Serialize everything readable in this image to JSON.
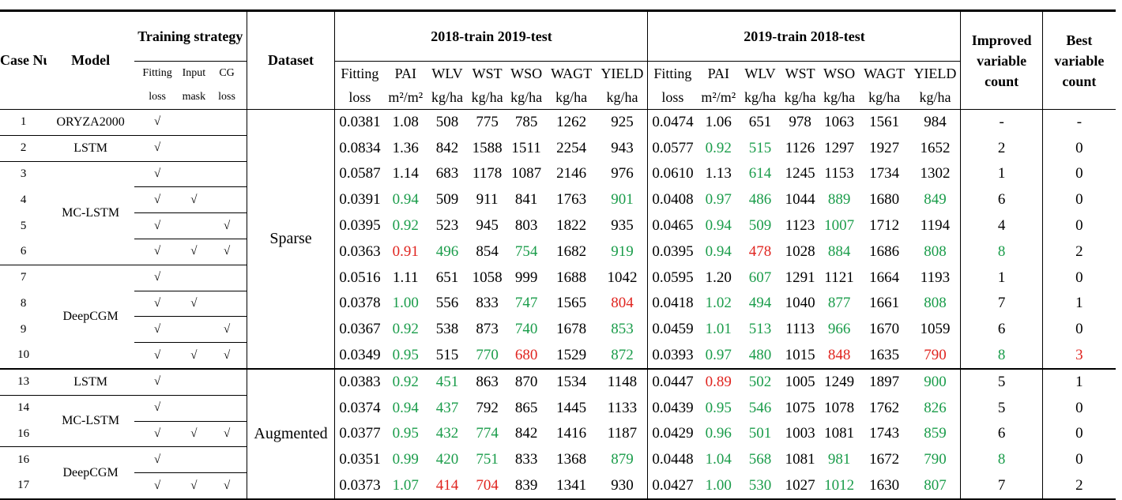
{
  "headers": {
    "case_num": "Case Num",
    "model": "Model",
    "training_strategy": "Training strategy",
    "fitting_loss_1": "Fitting",
    "fitting_loss_2": "loss",
    "input_mask_1": "Input",
    "input_mask_2": "mask",
    "cg_loss_1": "CG",
    "cg_loss_2": "loss",
    "dataset": "Dataset",
    "group1": "2018-train 2019-test",
    "group2": "2019-train 2018-test",
    "improved": "Improved variable count",
    "best": "Best variable count",
    "cols": [
      "Fitting",
      "PAI",
      "WLV",
      "WST",
      "WSO",
      "WAGT",
      "YIELD"
    ],
    "units": [
      "loss",
      "m²/m²",
      "kg/ha",
      "kg/ha",
      "kg/ha",
      "kg/ha",
      "kg/ha"
    ]
  },
  "rows": [
    {
      "num": "1",
      "model": "ORYZA2000",
      "f": "√",
      "m": "",
      "c": "",
      "a": [
        [
          "0.0381",
          ""
        ],
        [
          "1.08",
          ""
        ],
        [
          "508",
          ""
        ],
        [
          "775",
          ""
        ],
        [
          "785",
          ""
        ],
        [
          "1262",
          ""
        ],
        [
          "925",
          ""
        ]
      ],
      "b": [
        [
          "0.0474",
          ""
        ],
        [
          "1.06",
          ""
        ],
        [
          "651",
          ""
        ],
        [
          "978",
          ""
        ],
        [
          "1063",
          ""
        ],
        [
          "1561",
          ""
        ],
        [
          "984",
          ""
        ]
      ],
      "imp": [
        "-",
        ""
      ],
      "best": [
        "-",
        ""
      ]
    },
    {
      "num": "2",
      "model": "LSTM",
      "f": "√",
      "m": "",
      "c": "",
      "a": [
        [
          "0.0834",
          ""
        ],
        [
          "1.36",
          ""
        ],
        [
          "842",
          ""
        ],
        [
          "1588",
          ""
        ],
        [
          "1511",
          ""
        ],
        [
          "2254",
          ""
        ],
        [
          "943",
          ""
        ]
      ],
      "b": [
        [
          "0.0577",
          ""
        ],
        [
          "0.92",
          "g"
        ],
        [
          "515",
          "g"
        ],
        [
          "1126",
          ""
        ],
        [
          "1297",
          ""
        ],
        [
          "1927",
          ""
        ],
        [
          "1652",
          ""
        ]
      ],
      "imp": [
        "2",
        ""
      ],
      "best": [
        "0",
        ""
      ]
    },
    {
      "num": "3",
      "model": "",
      "f": "√",
      "m": "",
      "c": "",
      "a": [
        [
          "0.0587",
          ""
        ],
        [
          "1.14",
          ""
        ],
        [
          "683",
          ""
        ],
        [
          "1178",
          ""
        ],
        [
          "1087",
          ""
        ],
        [
          "2146",
          ""
        ],
        [
          "976",
          ""
        ]
      ],
      "b": [
        [
          "0.0610",
          ""
        ],
        [
          "1.13",
          ""
        ],
        [
          "614",
          "g"
        ],
        [
          "1245",
          ""
        ],
        [
          "1153",
          ""
        ],
        [
          "1734",
          ""
        ],
        [
          "1302",
          ""
        ]
      ],
      "imp": [
        "1",
        ""
      ],
      "best": [
        "0",
        ""
      ]
    },
    {
      "num": "4",
      "model": "",
      "f": "√",
      "m": "√",
      "c": "",
      "a": [
        [
          "0.0391",
          ""
        ],
        [
          "0.94",
          "g"
        ],
        [
          "509",
          ""
        ],
        [
          "911",
          ""
        ],
        [
          "841",
          ""
        ],
        [
          "1763",
          ""
        ],
        [
          "901",
          "g"
        ]
      ],
      "b": [
        [
          "0.0408",
          ""
        ],
        [
          "0.97",
          "g"
        ],
        [
          "486",
          "g"
        ],
        [
          "1044",
          ""
        ],
        [
          "889",
          "g"
        ],
        [
          "1680",
          ""
        ],
        [
          "849",
          "g"
        ]
      ],
      "imp": [
        "6",
        ""
      ],
      "best": [
        "0",
        ""
      ]
    },
    {
      "num": "5",
      "model": "",
      "f": "√",
      "m": "",
      "c": "√",
      "a": [
        [
          "0.0395",
          ""
        ],
        [
          "0.92",
          "g"
        ],
        [
          "523",
          ""
        ],
        [
          "945",
          ""
        ],
        [
          "803",
          ""
        ],
        [
          "1822",
          ""
        ],
        [
          "935",
          ""
        ]
      ],
      "b": [
        [
          "0.0465",
          ""
        ],
        [
          "0.94",
          "g"
        ],
        [
          "509",
          "g"
        ],
        [
          "1123",
          ""
        ],
        [
          "1007",
          "g"
        ],
        [
          "1712",
          ""
        ],
        [
          "1194",
          ""
        ]
      ],
      "imp": [
        "4",
        ""
      ],
      "best": [
        "0",
        ""
      ]
    },
    {
      "num": "6",
      "model": "",
      "f": "√",
      "m": "√",
      "c": "√",
      "a": [
        [
          "0.0363",
          ""
        ],
        [
          "0.91",
          "r"
        ],
        [
          "496",
          "g"
        ],
        [
          "854",
          ""
        ],
        [
          "754",
          "g"
        ],
        [
          "1682",
          ""
        ],
        [
          "919",
          "g"
        ]
      ],
      "b": [
        [
          "0.0395",
          ""
        ],
        [
          "0.94",
          "g"
        ],
        [
          "478",
          "r"
        ],
        [
          "1028",
          ""
        ],
        [
          "884",
          "g"
        ],
        [
          "1686",
          ""
        ],
        [
          "808",
          "g"
        ]
      ],
      "imp": [
        "8",
        "g"
      ],
      "best": [
        "2",
        ""
      ]
    },
    {
      "num": "7",
      "model": "",
      "f": "√",
      "m": "",
      "c": "",
      "a": [
        [
          "0.0516",
          ""
        ],
        [
          "1.11",
          ""
        ],
        [
          "651",
          ""
        ],
        [
          "1058",
          ""
        ],
        [
          "999",
          ""
        ],
        [
          "1688",
          ""
        ],
        [
          "1042",
          ""
        ]
      ],
      "b": [
        [
          "0.0595",
          ""
        ],
        [
          "1.20",
          ""
        ],
        [
          "607",
          "g"
        ],
        [
          "1291",
          ""
        ],
        [
          "1121",
          ""
        ],
        [
          "1664",
          ""
        ],
        [
          "1193",
          ""
        ]
      ],
      "imp": [
        "1",
        ""
      ],
      "best": [
        "0",
        ""
      ]
    },
    {
      "num": "8",
      "model": "",
      "f": "√",
      "m": "√",
      "c": "",
      "a": [
        [
          "0.0378",
          ""
        ],
        [
          "1.00",
          "g"
        ],
        [
          "556",
          ""
        ],
        [
          "833",
          ""
        ],
        [
          "747",
          "g"
        ],
        [
          "1565",
          ""
        ],
        [
          "804",
          "r"
        ]
      ],
      "b": [
        [
          "0.0418",
          ""
        ],
        [
          "1.02",
          "g"
        ],
        [
          "494",
          "g"
        ],
        [
          "1040",
          ""
        ],
        [
          "877",
          "g"
        ],
        [
          "1661",
          ""
        ],
        [
          "808",
          "g"
        ]
      ],
      "imp": [
        "7",
        ""
      ],
      "best": [
        "1",
        ""
      ]
    },
    {
      "num": "9",
      "model": "",
      "f": "√",
      "m": "",
      "c": "√",
      "a": [
        [
          "0.0367",
          ""
        ],
        [
          "0.92",
          "g"
        ],
        [
          "538",
          ""
        ],
        [
          "873",
          ""
        ],
        [
          "740",
          "g"
        ],
        [
          "1678",
          ""
        ],
        [
          "853",
          "g"
        ]
      ],
      "b": [
        [
          "0.0459",
          ""
        ],
        [
          "1.01",
          "g"
        ],
        [
          "513",
          "g"
        ],
        [
          "1113",
          ""
        ],
        [
          "966",
          "g"
        ],
        [
          "1670",
          ""
        ],
        [
          "1059",
          ""
        ]
      ],
      "imp": [
        "6",
        ""
      ],
      "best": [
        "0",
        ""
      ]
    },
    {
      "num": "10",
      "model": "",
      "f": "√",
      "m": "√",
      "c": "√",
      "a": [
        [
          "0.0349",
          ""
        ],
        [
          "0.95",
          "g"
        ],
        [
          "515",
          ""
        ],
        [
          "770",
          "g"
        ],
        [
          "680",
          "r"
        ],
        [
          "1529",
          ""
        ],
        [
          "872",
          "g"
        ]
      ],
      "b": [
        [
          "0.0393",
          ""
        ],
        [
          "0.97",
          "g"
        ],
        [
          "480",
          "g"
        ],
        [
          "1015",
          ""
        ],
        [
          "848",
          "r"
        ],
        [
          "1635",
          ""
        ],
        [
          "790",
          "r"
        ]
      ],
      "imp": [
        "8",
        "g"
      ],
      "best": [
        "3",
        "r"
      ]
    },
    {
      "num": "13",
      "model": "LSTM",
      "f": "√",
      "m": "",
      "c": "",
      "a": [
        [
          "0.0383",
          ""
        ],
        [
          "0.92",
          "g"
        ],
        [
          "451",
          "g"
        ],
        [
          "863",
          ""
        ],
        [
          "870",
          ""
        ],
        [
          "1534",
          ""
        ],
        [
          "1148",
          ""
        ]
      ],
      "b": [
        [
          "0.0447",
          ""
        ],
        [
          "0.89",
          "r"
        ],
        [
          "502",
          "g"
        ],
        [
          "1005",
          ""
        ],
        [
          "1249",
          ""
        ],
        [
          "1897",
          ""
        ],
        [
          "900",
          "g"
        ]
      ],
      "imp": [
        "5",
        ""
      ],
      "best": [
        "1",
        ""
      ]
    },
    {
      "num": "14",
      "model": "",
      "f": "√",
      "m": "",
      "c": "",
      "a": [
        [
          "0.0374",
          ""
        ],
        [
          "0.94",
          "g"
        ],
        [
          "437",
          "g"
        ],
        [
          "792",
          ""
        ],
        [
          "865",
          ""
        ],
        [
          "1445",
          ""
        ],
        [
          "1133",
          ""
        ]
      ],
      "b": [
        [
          "0.0439",
          ""
        ],
        [
          "0.95",
          "g"
        ],
        [
          "546",
          "g"
        ],
        [
          "1075",
          ""
        ],
        [
          "1078",
          ""
        ],
        [
          "1762",
          ""
        ],
        [
          "826",
          "g"
        ]
      ],
      "imp": [
        "5",
        ""
      ],
      "best": [
        "0",
        ""
      ]
    },
    {
      "num": "16",
      "model": "",
      "f": "√",
      "m": "√",
      "c": "√",
      "a": [
        [
          "0.0377",
          ""
        ],
        [
          "0.95",
          "g"
        ],
        [
          "432",
          "g"
        ],
        [
          "774",
          "g"
        ],
        [
          "842",
          ""
        ],
        [
          "1416",
          ""
        ],
        [
          "1187",
          ""
        ]
      ],
      "b": [
        [
          "0.0429",
          ""
        ],
        [
          "0.96",
          "g"
        ],
        [
          "501",
          "g"
        ],
        [
          "1003",
          ""
        ],
        [
          "1081",
          ""
        ],
        [
          "1743",
          ""
        ],
        [
          "859",
          "g"
        ]
      ],
      "imp": [
        "6",
        ""
      ],
      "best": [
        "0",
        ""
      ]
    },
    {
      "num": "16",
      "model": "",
      "f": "√",
      "m": "",
      "c": "",
      "a": [
        [
          "0.0351",
          ""
        ],
        [
          "0.99",
          "g"
        ],
        [
          "420",
          "g"
        ],
        [
          "751",
          "g"
        ],
        [
          "833",
          ""
        ],
        [
          "1368",
          ""
        ],
        [
          "879",
          "g"
        ]
      ],
      "b": [
        [
          "0.0448",
          ""
        ],
        [
          "1.04",
          "g"
        ],
        [
          "568",
          "g"
        ],
        [
          "1081",
          ""
        ],
        [
          "981",
          "g"
        ],
        [
          "1672",
          ""
        ],
        [
          "790",
          "g"
        ]
      ],
      "imp": [
        "8",
        "g"
      ],
      "best": [
        "0",
        ""
      ]
    },
    {
      "num": "17",
      "model": "",
      "f": "√",
      "m": "√",
      "c": "√",
      "a": [
        [
          "0.0373",
          ""
        ],
        [
          "1.07",
          "g"
        ],
        [
          "414",
          "r"
        ],
        [
          "704",
          "r"
        ],
        [
          "839",
          ""
        ],
        [
          "1341",
          ""
        ],
        [
          "930",
          ""
        ]
      ],
      "b": [
        [
          "0.0427",
          ""
        ],
        [
          "1.00",
          "g"
        ],
        [
          "530",
          "g"
        ],
        [
          "1027",
          ""
        ],
        [
          "1012",
          "g"
        ],
        [
          "1630",
          ""
        ],
        [
          "807",
          "g"
        ]
      ],
      "imp": [
        "7",
        ""
      ],
      "best": [
        "2",
        ""
      ]
    }
  ],
  "model_groups": [
    {
      "label": "MC-LSTM",
      "rows": [
        2,
        5
      ]
    },
    {
      "label": "DeepCGM",
      "rows": [
        6,
        9
      ]
    },
    {
      "label": "MC-LSTM",
      "rows": [
        11,
        12
      ]
    },
    {
      "label": "DeepCGM",
      "rows": [
        13,
        14
      ]
    }
  ],
  "datasets": [
    {
      "label": "Sparse",
      "rows": [
        0,
        9
      ]
    },
    {
      "label": "Augmented",
      "rows": [
        10,
        14
      ]
    }
  ]
}
